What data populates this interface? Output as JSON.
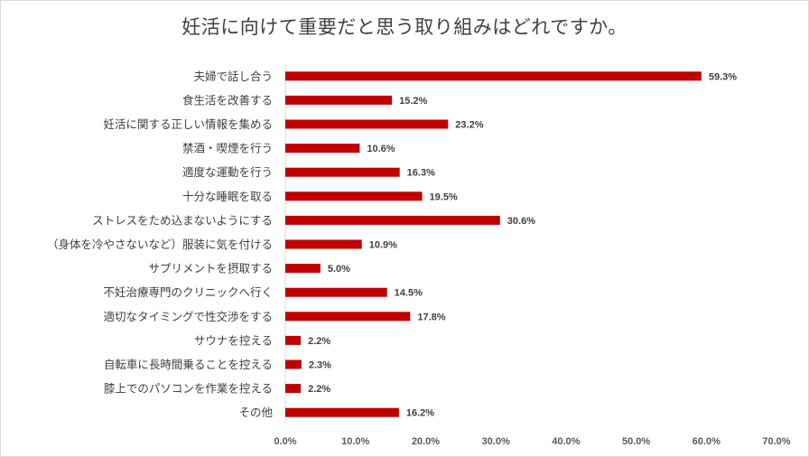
{
  "chart_data": {
    "type": "bar",
    "orientation": "horizontal",
    "title": "妊活に向けて重要だと思う取り組みはどれですか。",
    "categories": [
      "夫婦で話し合う",
      "食生活を改善する",
      "妊活に関する正しい情報を集める",
      "禁酒・喫煙を行う",
      "適度な運動を行う",
      "十分な睡眠を取る",
      "ストレスをため込まないようにする",
      "（身体を冷やさないなど）服装に気を付ける",
      "サプリメントを摂取する",
      "不妊治療専門のクリニックへ行く",
      "適切なタイミングで性交渉をする",
      "サウナを控える",
      "自転車に長時間乗ることを控える",
      "膝上でのパソコンを作業を控える",
      "その他"
    ],
    "values": [
      59.3,
      15.2,
      23.2,
      10.6,
      16.3,
      19.5,
      30.6,
      10.9,
      5.0,
      14.5,
      17.8,
      2.2,
      2.3,
      2.2,
      16.2
    ],
    "value_labels": [
      "59.3%",
      "15.2%",
      "23.2%",
      "10.6%",
      "16.3%",
      "19.5%",
      "30.6%",
      "10.9%",
      "5.0%",
      "14.5%",
      "17.8%",
      "2.2%",
      "2.3%",
      "2.2%",
      "16.2%"
    ],
    "xlim": [
      0,
      70
    ],
    "x_ticks": [
      "0.0%",
      "10.0%",
      "20.0%",
      "30.0%",
      "40.0%",
      "50.0%",
      "60.0%",
      "70.0%"
    ],
    "xlabel": "",
    "ylabel": "",
    "grid": false,
    "bar_color": "#c00000"
  }
}
